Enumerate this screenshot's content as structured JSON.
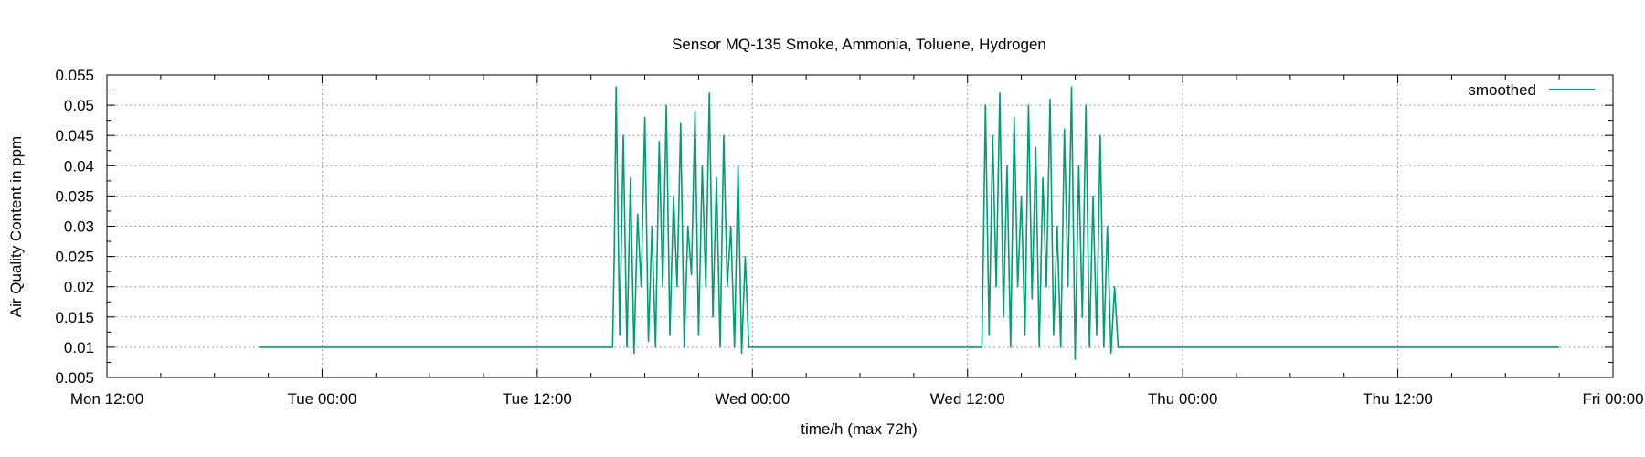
{
  "chart_data": {
    "type": "line",
    "title": "Sensor  MQ-135 Smoke, Ammonia, Toluene, Hydrogen",
    "xlabel": "time/h (max 72h)",
    "ylabel": "Air Quality Content in ppm",
    "xlim_hours": [
      0,
      84
    ],
    "x_tick_labels": [
      "Mon 12:00",
      "Tue 00:00",
      "Tue 12:00",
      "Wed 00:00",
      "Wed 12:00",
      "Thu 00:00",
      "Thu 12:00",
      "Fri 00:00"
    ],
    "ylim": [
      0.005,
      0.055
    ],
    "y_ticks": [
      0.005,
      0.01,
      0.015,
      0.02,
      0.025,
      0.03,
      0.035,
      0.04,
      0.045,
      0.05,
      0.055
    ],
    "y_tick_labels": [
      "0.005",
      "0.01",
      "0.015",
      "0.02",
      "0.025",
      "0.03",
      "0.035",
      "0.04",
      "0.045",
      "0.05",
      "0.055"
    ],
    "grid": true,
    "legend_position": "top-right",
    "series": [
      {
        "name": "smoothed",
        "color": "#009e73",
        "points": [
          [
            8.5,
            0.01
          ],
          [
            28.2,
            0.01
          ],
          [
            28.3,
            0.026
          ],
          [
            28.4,
            0.053
          ],
          [
            28.6,
            0.012
          ],
          [
            28.8,
            0.045
          ],
          [
            29.0,
            0.01
          ],
          [
            29.2,
            0.038
          ],
          [
            29.4,
            0.009
          ],
          [
            29.6,
            0.032
          ],
          [
            29.8,
            0.02
          ],
          [
            30.0,
            0.048
          ],
          [
            30.2,
            0.011
          ],
          [
            30.4,
            0.03
          ],
          [
            30.6,
            0.01
          ],
          [
            30.8,
            0.044
          ],
          [
            31.0,
            0.02
          ],
          [
            31.2,
            0.05
          ],
          [
            31.4,
            0.012
          ],
          [
            31.6,
            0.035
          ],
          [
            31.8,
            0.02
          ],
          [
            32.0,
            0.047
          ],
          [
            32.2,
            0.01
          ],
          [
            32.4,
            0.03
          ],
          [
            32.6,
            0.022
          ],
          [
            32.8,
            0.049
          ],
          [
            33.0,
            0.012
          ],
          [
            33.2,
            0.04
          ],
          [
            33.4,
            0.02
          ],
          [
            33.6,
            0.052
          ],
          [
            33.8,
            0.015
          ],
          [
            34.0,
            0.038
          ],
          [
            34.2,
            0.01
          ],
          [
            34.4,
            0.045
          ],
          [
            34.6,
            0.02
          ],
          [
            34.8,
            0.03
          ],
          [
            35.0,
            0.01
          ],
          [
            35.2,
            0.04
          ],
          [
            35.4,
            0.009
          ],
          [
            35.6,
            0.025
          ],
          [
            35.8,
            0.01
          ],
          [
            36.0,
            0.01
          ],
          [
            48.8,
            0.01
          ],
          [
            48.9,
            0.03
          ],
          [
            49.0,
            0.05
          ],
          [
            49.2,
            0.012
          ],
          [
            49.4,
            0.045
          ],
          [
            49.6,
            0.02
          ],
          [
            49.8,
            0.052
          ],
          [
            50.0,
            0.015
          ],
          [
            50.2,
            0.04
          ],
          [
            50.4,
            0.01
          ],
          [
            50.6,
            0.048
          ],
          [
            50.8,
            0.02
          ],
          [
            51.0,
            0.035
          ],
          [
            51.2,
            0.012
          ],
          [
            51.4,
            0.05
          ],
          [
            51.6,
            0.018
          ],
          [
            51.8,
            0.043
          ],
          [
            52.0,
            0.01
          ],
          [
            52.2,
            0.038
          ],
          [
            52.4,
            0.02
          ],
          [
            52.6,
            0.051
          ],
          [
            52.8,
            0.012
          ],
          [
            53.0,
            0.03
          ],
          [
            53.2,
            0.01
          ],
          [
            53.4,
            0.046
          ],
          [
            53.6,
            0.02
          ],
          [
            53.8,
            0.053
          ],
          [
            54.0,
            0.008
          ],
          [
            54.2,
            0.04
          ],
          [
            54.4,
            0.015
          ],
          [
            54.6,
            0.05
          ],
          [
            54.8,
            0.01
          ],
          [
            55.0,
            0.035
          ],
          [
            55.2,
            0.012
          ],
          [
            55.4,
            0.045
          ],
          [
            55.6,
            0.01
          ],
          [
            55.8,
            0.03
          ],
          [
            56.0,
            0.009
          ],
          [
            56.2,
            0.02
          ],
          [
            56.4,
            0.01
          ],
          [
            56.6,
            0.01
          ],
          [
            81.0,
            0.01
          ]
        ]
      }
    ]
  }
}
